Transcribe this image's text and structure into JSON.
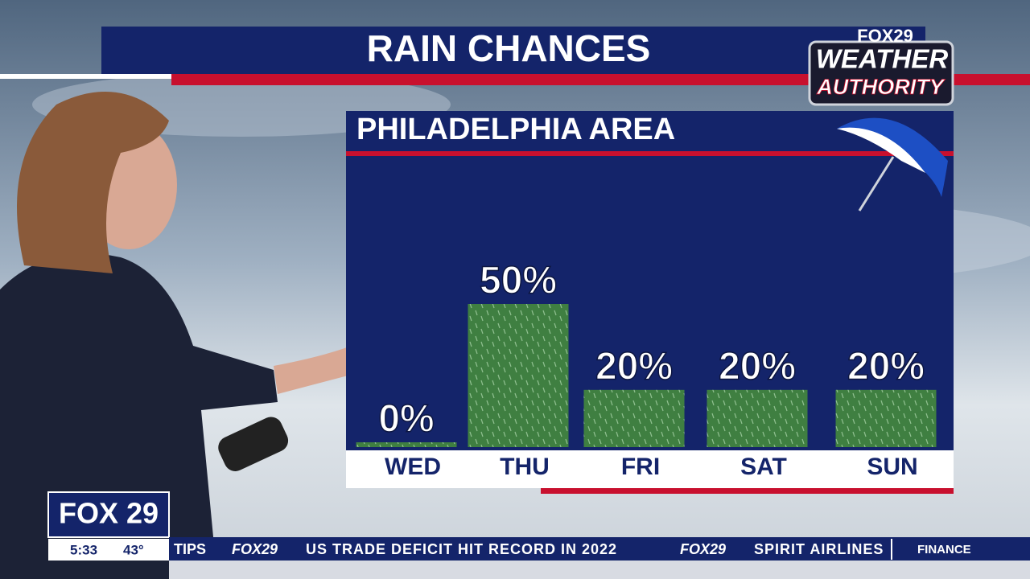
{
  "chart_data": {
    "type": "bar",
    "title": "RAIN CHANCES",
    "subtitle": "PHILADELPHIA AREA",
    "categories": [
      "WED",
      "THU",
      "FRI",
      "SAT",
      "SUN"
    ],
    "values": [
      0,
      50,
      20,
      20,
      20
    ],
    "value_labels": [
      "0%",
      "50%",
      "20%",
      "20%",
      "20%"
    ],
    "color": "#3f7f41"
  },
  "branding": {
    "logo_top": "FOX29",
    "logo_main": "WEATHER",
    "logo_sub": "AUTHORITY",
    "station": "FOX 29",
    "time": "5:33",
    "temperature": "43°"
  },
  "ticker": {
    "items": [
      "TIPS",
      "FOX29",
      "US TRADE DEFICIT HIT RECORD IN 2022",
      "FOX29",
      "SPIRIT AIRLINES",
      "FINANCE"
    ]
  }
}
